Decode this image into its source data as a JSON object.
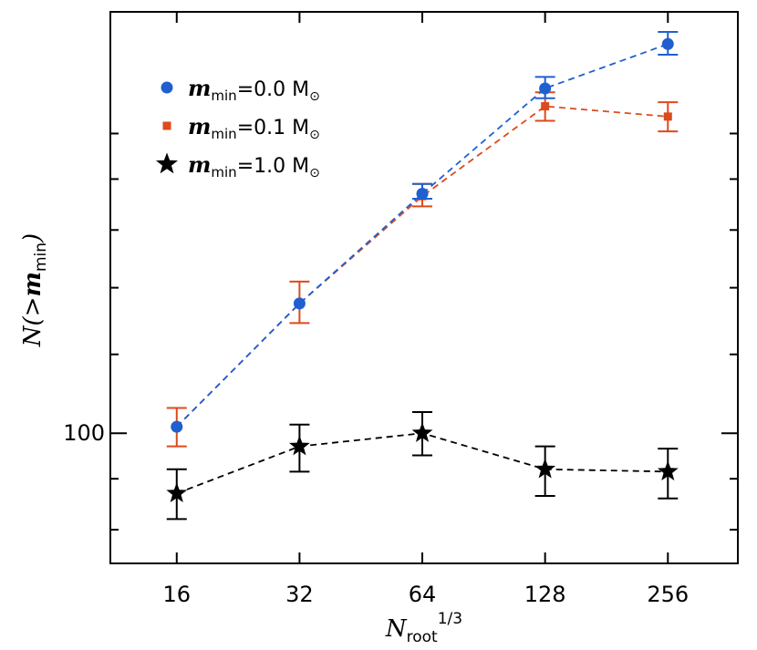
{
  "chart_data": {
    "type": "line",
    "xlabel": "N_root^(1/3)",
    "xlabel_parts": {
      "main": "N",
      "sub": "root",
      "sup": "1/3"
    },
    "ylabel": "N(>m_min)",
    "ylabel_parts": {
      "main": "N(>",
      "var": "m",
      "sub": "min",
      "close": ")"
    },
    "x_scale": "log2",
    "y_scale": "log",
    "x_ticks": [
      "16",
      "32",
      "64",
      "128",
      "256"
    ],
    "x": [
      16,
      32,
      64,
      128,
      256
    ],
    "xlim": [
      11,
      380
    ],
    "ylim": [
      74,
      265
    ],
    "y_labeled_tick": "100",
    "y_labeled_tick_value": 100,
    "y_minor_ticks": [
      80,
      90,
      120,
      140,
      160,
      180,
      200
    ],
    "grid": false,
    "legend_position": "top-left",
    "series": [
      {
        "name": "m_min=0.0 M_⊙",
        "legend": {
          "var": "m",
          "sub": "min",
          "value": "=0.0 M",
          "sun": "⊙"
        },
        "color": "#1f5fd0",
        "marker": "circle",
        "line": "dashed",
        "values": [
          101.5,
          135,
          174,
          222,
          246
        ],
        "err_lo": [
          101.5,
          135,
          172,
          217,
          240
        ],
        "err_hi": [
          101.5,
          135,
          178,
          228,
          253
        ]
      },
      {
        "name": "m_min=0.1 M_⊙",
        "legend": {
          "var": "m",
          "sub": "min",
          "value": "=0.1 M",
          "sun": "⊙"
        },
        "color": "#dd4a1b",
        "marker": "square",
        "line": "dashed",
        "values": [
          101.5,
          135,
          173,
          213,
          208
        ],
        "err_lo": [
          97,
          129,
          169,
          206,
          201
        ],
        "err_hi": [
          106,
          142,
          178,
          220,
          215
        ]
      },
      {
        "name": "m_min=1.0 M_⊙",
        "legend": {
          "var": "m",
          "sub": "min",
          "value": "=1.0 M",
          "sun": "⊙"
        },
        "color": "#000000",
        "marker": "star",
        "line": "dashed",
        "values": [
          87,
          97,
          100,
          92,
          91.5
        ],
        "err_lo": [
          82,
          91.5,
          95,
          86.5,
          86
        ],
        "err_hi": [
          92,
          102,
          105,
          97,
          96.5
        ]
      }
    ]
  }
}
